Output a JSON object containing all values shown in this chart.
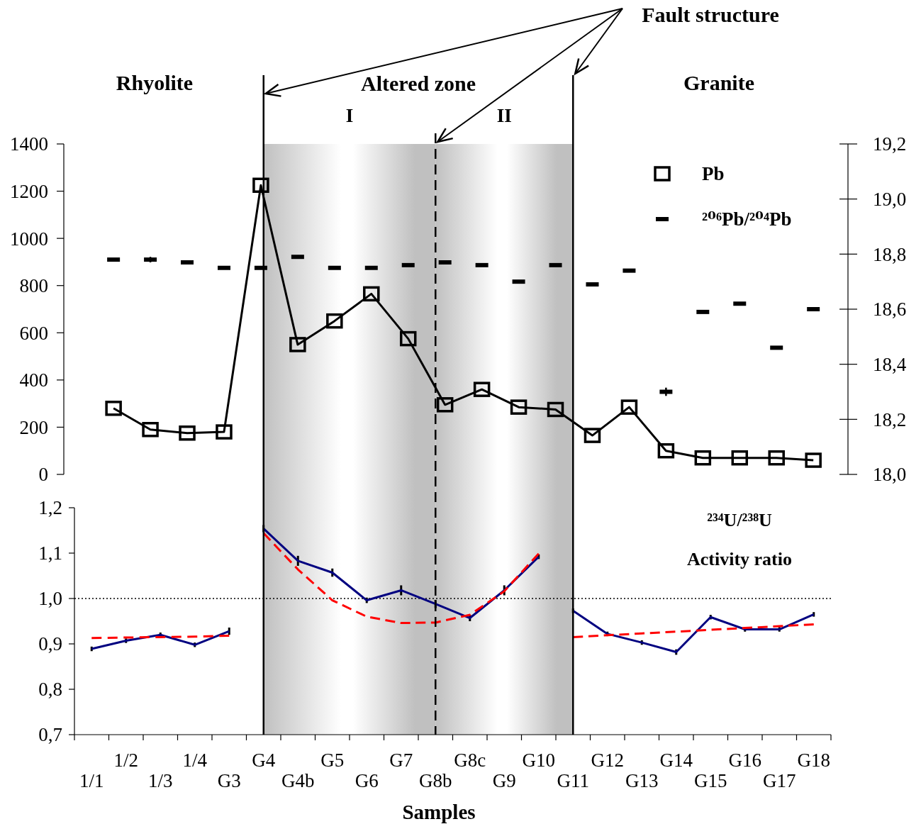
{
  "chart_data": [
    {
      "type": "line",
      "categories": [
        null,
        null,
        null,
        null,
        null,
        null,
        null,
        null,
        null,
        null,
        null,
        null,
        null,
        null,
        null,
        null,
        null,
        null,
        null,
        null
      ],
      "series": [
        {
          "name": "Pb",
          "color": "#000000",
          "marker": "square",
          "values": [
            280,
            190,
            175,
            180,
            1225,
            550,
            650,
            765,
            575,
            295,
            360,
            285,
            275,
            165,
            285,
            100,
            70,
            70,
            70,
            60
          ]
        },
        {
          "name": "²⁰⁶Pb/²⁰⁴Pb",
          "type": "scatter",
          "axis": "y2",
          "color": "#000000",
          "values": [
            18.78,
            18.78,
            18.77,
            18.75,
            18.75,
            18.79,
            18.75,
            18.75,
            18.76,
            18.77,
            18.76,
            18.7,
            18.76,
            18.69,
            18.74,
            18.3,
            18.59,
            18.62,
            18.46,
            18.6
          ],
          "errors": [
            null,
            0.01,
            null,
            null,
            null,
            null,
            null,
            null,
            null,
            null,
            null,
            null,
            null,
            null,
            null,
            0.015,
            null,
            null,
            null,
            null
          ]
        }
      ],
      "ylim": [
        0,
        1400
      ],
      "yticks": [
        0,
        200,
        400,
        600,
        800,
        1000,
        1200,
        1400
      ],
      "y2lim": [
        18.0,
        19.2
      ],
      "y2ticks": [
        {
          "value": 18,
          "label": "18,0"
        },
        {
          "value": 18.2,
          "label": "18,2"
        },
        {
          "value": 18.4,
          "label": "18,4"
        },
        {
          "value": 18.6,
          "label": "18,6"
        },
        {
          "value": 18.8,
          "label": "18,8"
        },
        {
          "value": 19,
          "label": "19,0"
        },
        {
          "value": 19.2,
          "label": "19,2"
        }
      ],
      "legend": "top right"
    },
    {
      "type": "line",
      "xlabel": "Samples",
      "ylabel": "²³⁴U/²³⁸U\nActivity ratio",
      "categories": [
        "1/1",
        "1/2",
        "1/3",
        "1/4",
        "G3",
        "G4",
        "G4b",
        "G5",
        "G6",
        "G7",
        "G8b",
        "G8c",
        "G9",
        "G10",
        "G11",
        "G12",
        "G13",
        "G14",
        "G15",
        "G16",
        "G17",
        "G18"
      ],
      "series": [
        {
          "color": "#000080",
          "values": [
            0.889,
            0.907,
            0.92,
            0.898,
            0.928,
            null,
            null,
            null,
            null,
            null,
            null,
            null,
            null,
            null,
            null,
            null,
            null,
            null,
            null,
            null,
            null,
            null
          ],
          "errors": [
            0.005,
            0.005,
            0.005,
            0.005,
            0.008,
            null,
            null,
            null,
            null,
            null,
            null,
            null,
            null,
            null,
            null,
            null,
            null,
            null,
            null,
            null,
            null,
            null
          ]
        },
        {
          "color": "#000080",
          "values": [
            null,
            null,
            null,
            null,
            null,
            1.154,
            1.083,
            1.057,
            0.996,
            1.018,
            0.988,
            0.957,
            1.018,
            1.092,
            null,
            null,
            null,
            null,
            null,
            null,
            null,
            null
          ],
          "errors": [
            null,
            null,
            null,
            null,
            null,
            0.008,
            0.011,
            0.009,
            0.006,
            0.011,
            0.009,
            0.007,
            0.011,
            0.005,
            null,
            null,
            null,
            null,
            null,
            null,
            null,
            null
          ]
        },
        {
          "color": "#000080",
          "values": [
            null,
            null,
            null,
            null,
            null,
            null,
            null,
            null,
            null,
            null,
            null,
            null,
            null,
            null,
            0.973,
            0.922,
            0.903,
            0.882,
            0.959,
            0.932,
            0.932,
            0.965
          ],
          "errors": [
            null,
            null,
            null,
            null,
            null,
            null,
            null,
            null,
            null,
            null,
            null,
            null,
            null,
            null,
            0.005,
            0.005,
            0.005,
            0.006,
            0.005,
            0.005,
            0.005,
            0.005
          ]
        },
        {
          "color": "#ff0000",
          "line_style": "dashed",
          "values": [
            0.913,
            0.914,
            0.915,
            0.916,
            0.918,
            null,
            null,
            null,
            null,
            null,
            null,
            null,
            null,
            null,
            null,
            null,
            null,
            null,
            null,
            null,
            null,
            null
          ]
        },
        {
          "color": "#ff0000",
          "line_style": "dashed",
          "values": [
            null,
            null,
            null,
            null,
            null,
            1.144,
            1.064,
            0.996,
            0.96,
            0.946,
            0.947,
            0.964,
            1.016,
            1.099,
            null,
            null,
            null,
            null,
            null,
            null,
            null,
            null
          ]
        },
        {
          "color": "#ff0000",
          "line_style": "dashed",
          "values": [
            null,
            null,
            null,
            null,
            null,
            null,
            null,
            null,
            null,
            null,
            null,
            null,
            null,
            null,
            0.915,
            0.919,
            0.923,
            0.927,
            0.931,
            0.935,
            0.939,
            0.943
          ]
        }
      ],
      "ylim": [
        0.7,
        1.2
      ],
      "yticks": [
        {
          "value": 0.7,
          "label": "0,7"
        },
        {
          "value": 0.8,
          "label": "0,8"
        },
        {
          "value": 0.9,
          "label": "0,9"
        },
        {
          "value": 1,
          "label": "1,0"
        },
        {
          "value": 1.1,
          "label": "1,1"
        },
        {
          "value": 1.2,
          "label": "1,2"
        }
      ],
      "ref_lines": [
        {
          "axis": "y",
          "value": 1,
          "line_style": "dotted",
          "color": "#000000"
        },
        {
          "axis": "x",
          "value": "G4",
          "color": "#000000"
        },
        {
          "axis": "x",
          "value": "G8b",
          "line_style": "dashed",
          "color": "#000000"
        },
        {
          "axis": "x",
          "value": "G11",
          "color": "#000000"
        }
      ],
      "bands": [
        {
          "axis": "x",
          "from": "G4",
          "to": "G8b",
          "label": "I",
          "color": "#c0c0c0"
        },
        {
          "axis": "x",
          "from": "G8b",
          "to": "G11",
          "label": "II",
          "color": "#c0c0c0"
        }
      ],
      "annotations": [
        "Rhyolite",
        "Altered zone",
        "Granite",
        "Fault structure"
      ]
    }
  ]
}
